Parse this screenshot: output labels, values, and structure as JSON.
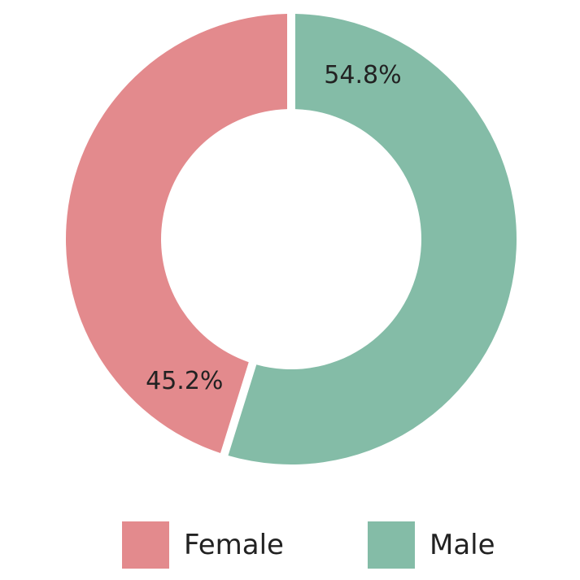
{
  "chart_data": {
    "type": "pie",
    "subtype": "donut",
    "title": "",
    "slices": [
      {
        "name": "Male",
        "value": 54.8,
        "label": "54.8%",
        "color": "#84bca7"
      },
      {
        "name": "Female",
        "value": 45.2,
        "label": "45.2%",
        "color": "#e38a8d"
      }
    ],
    "start": "top",
    "direction": "clockwise",
    "legend_position": "bottom"
  },
  "legend": {
    "items": [
      {
        "label": "Female",
        "color": "#e38a8d"
      },
      {
        "label": "Male",
        "color": "#84bca7"
      }
    ]
  }
}
